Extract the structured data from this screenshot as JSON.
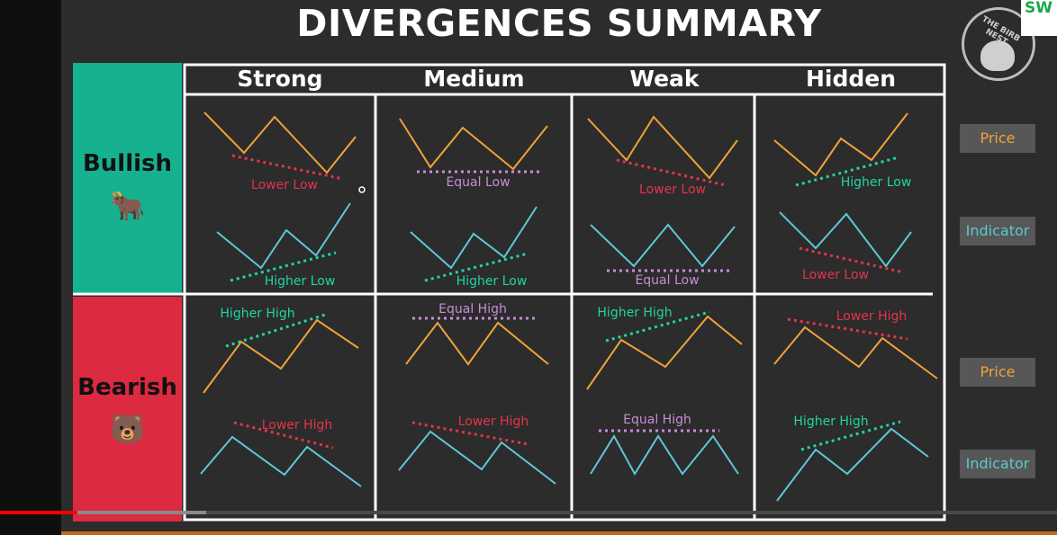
{
  "title": "DIVERGENCES SUMMARY",
  "columns": [
    "Strong",
    "Medium",
    "Weak",
    "Hidden"
  ],
  "rows": [
    {
      "label": "Bullish",
      "emoji": "🐂"
    },
    {
      "label": "Bearish",
      "emoji": "🐻"
    }
  ],
  "side_labels": [
    "Price",
    "Indicator",
    "Price",
    "Indicator"
  ],
  "logo_text": "THE BIRB NEST",
  "corner_text": "SW",
  "colors": {
    "price": "#f0a23a",
    "indicator": "#5ec8d4",
    "lower": "#e3344a",
    "higher": "#1fd6a2",
    "equal": "#c98bd8",
    "bullish_bg": "#16b18f",
    "bearish_bg": "#dc2a41"
  },
  "video": {
    "progress": 0.073,
    "buffered": 0.195
  },
  "cells": [
    {
      "row": "bullish",
      "col": "Strong",
      "top_label": "Lower Low",
      "top_label_color": "lower",
      "bottom_label": "Higher Low",
      "bottom_label_color": "higher"
    },
    {
      "row": "bullish",
      "col": "Medium",
      "top_label": "Equal Low",
      "top_label_color": "equal",
      "bottom_label": "Higher Low",
      "bottom_label_color": "higher"
    },
    {
      "row": "bullish",
      "col": "Weak",
      "top_label": "Lower Low",
      "top_label_color": "lower",
      "bottom_label": "Equal Low",
      "bottom_label_color": "equal"
    },
    {
      "row": "bullish",
      "col": "Hidden",
      "top_label": "Higher Low",
      "top_label_color": "higher",
      "bottom_label": "Lower Low",
      "bottom_label_color": "lower"
    },
    {
      "row": "bearish",
      "col": "Strong",
      "top_label": "Higher High",
      "top_label_color": "higher",
      "bottom_label": "Lower High",
      "bottom_label_color": "lower"
    },
    {
      "row": "bearish",
      "col": "Medium",
      "top_label": "Equal High",
      "top_label_color": "equal",
      "bottom_label": "Lower High",
      "bottom_label_color": "lower"
    },
    {
      "row": "bearish",
      "col": "Weak",
      "top_label": "Higher High",
      "top_label_color": "higher",
      "bottom_label": "Equal High",
      "bottom_label_color": "equal"
    },
    {
      "row": "bearish",
      "col": "Hidden",
      "top_label": "Lower High",
      "top_label_color": "lower",
      "bottom_label": "Higher High",
      "bottom_label_color": "higher"
    }
  ]
}
